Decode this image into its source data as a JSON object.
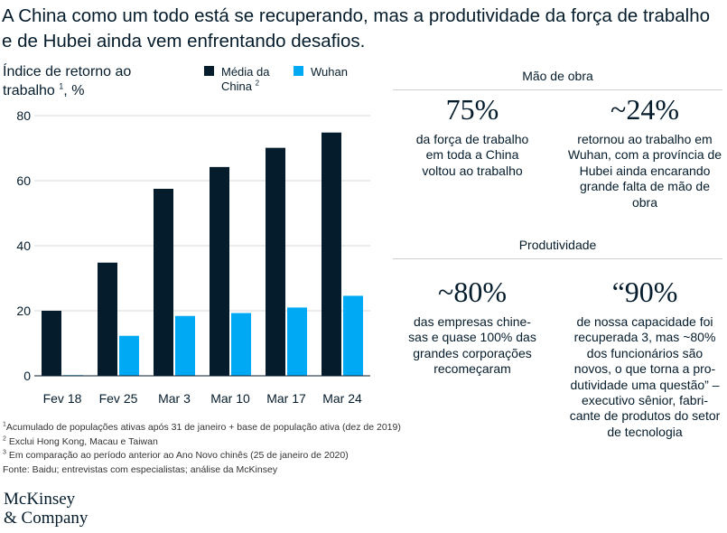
{
  "title": "A China como um todo está se recuperando, mas a produtividade da força de trabalho e de Hubei ainda vem enfrentando desafios.",
  "chart_data": {
    "type": "bar",
    "ylabel": "Índice de retorno ao trabalho",
    "ylabel_sup": "1",
    "ylabel_unit": ", %",
    "categories": [
      "Fev 18",
      "Fev 25",
      "Mar 3",
      "Mar 10",
      "Mar 17",
      "Mar 24"
    ],
    "series": [
      {
        "name": "Média da China",
        "name_sup": "2",
        "color": "#051c2c",
        "values": [
          20,
          34.8,
          57.5,
          64.2,
          70.1,
          74.8
        ]
      },
      {
        "name": "Wuhan",
        "color": "#00a9f4",
        "values": [
          0.2,
          12.3,
          18.4,
          19.3,
          21,
          24.6
        ]
      }
    ],
    "ylim": [
      0,
      80
    ],
    "yticks": [
      0,
      20,
      40,
      60,
      80
    ],
    "grid": true,
    "legend_position": "top"
  },
  "panels": [
    {
      "header": "Mão de obra",
      "stats": [
        {
          "number": "75%",
          "description": "da força de trabalho em toda a China voltou ao trabalho"
        },
        {
          "number": "~24%",
          "description": "retornou ao trabalho em Wuhan, com a província de Hubei ainda encarando grande falta de mão de obra"
        }
      ]
    },
    {
      "header": "Produtividade",
      "stats": [
        {
          "number": "~80%",
          "description": "das empresas chine-sas e quase 100% das grandes corporações recomeçaram"
        },
        {
          "number": "“90%",
          "description": "de nossa capacidade foi recuperada 3, mas ~80% dos funcionários são novos, o que torna a pro-dutividade uma questão” – executivo sênior, fabri-cante de produtos do setor de tecnologia"
        }
      ]
    }
  ],
  "footnotes": [
    {
      "marker": "1",
      "text": "Acumulado de populações ativas após 31 de janeiro + base de população ativa (dez de 2019)"
    },
    {
      "marker": "2",
      "text": " Exclui Hong Kong, Macau e Taiwan"
    },
    {
      "marker": "3",
      "text": " Em comparação ao período anterior ao Ano Novo chinês (25 de janeiro de 2020)"
    }
  ],
  "source": "Fonte: Baidu; entrevistas com especialistas; análise da McKinsey",
  "logo": {
    "line1": "McKinsey",
    "line2": "& Company"
  }
}
